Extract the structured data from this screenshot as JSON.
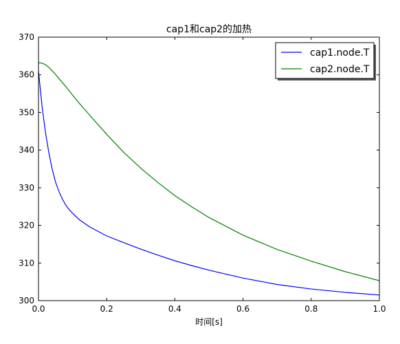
{
  "chart_data": {
    "type": "line",
    "title": "cap1和cap2的加热",
    "xlabel": "时间[s]",
    "ylabel": "",
    "xlim": [
      0.0,
      1.0
    ],
    "ylim": [
      300,
      370
    ],
    "xticks": [
      0.0,
      0.2,
      0.4,
      0.6,
      0.8,
      1.0
    ],
    "xtick_labels": [
      "0.0",
      "0.2",
      "0.4",
      "0.6",
      "0.8",
      "1.0"
    ],
    "yticks": [
      300,
      310,
      320,
      330,
      340,
      350,
      360,
      370
    ],
    "ytick_labels": [
      "300",
      "310",
      "320",
      "330",
      "340",
      "350",
      "360",
      "370"
    ],
    "grid": false,
    "legend_position": "top-right",
    "series": [
      {
        "name": "cap1.node.T",
        "color": "#0000ff",
        "x": [
          0.0,
          0.01,
          0.02,
          0.03,
          0.04,
          0.05,
          0.06,
          0.07,
          0.08,
          0.09,
          0.1,
          0.12,
          0.15,
          0.2,
          0.25,
          0.3,
          0.35,
          0.4,
          0.45,
          0.5,
          0.6,
          0.7,
          0.8,
          0.9,
          1.0
        ],
        "y": [
          361.0,
          352.0,
          345.0,
          339.5,
          335.0,
          331.5,
          329.0,
          327.0,
          325.4,
          324.2,
          323.2,
          321.5,
          319.6,
          317.2,
          315.4,
          313.7,
          312.1,
          310.6,
          309.3,
          308.1,
          306.0,
          304.3,
          303.1,
          302.2,
          301.5
        ]
      },
      {
        "name": "cap2.node.T",
        "color": "#008000",
        "x": [
          0.0,
          0.01,
          0.02,
          0.03,
          0.04,
          0.05,
          0.06,
          0.08,
          0.1,
          0.12,
          0.15,
          0.2,
          0.25,
          0.3,
          0.35,
          0.4,
          0.45,
          0.5,
          0.6,
          0.7,
          0.8,
          0.9,
          1.0
        ],
        "y": [
          363.2,
          363.1,
          362.7,
          362.0,
          361.1,
          360.1,
          359.0,
          356.9,
          354.6,
          352.4,
          349.3,
          344.2,
          339.4,
          335.2,
          331.4,
          327.9,
          324.9,
          322.1,
          317.4,
          313.6,
          310.5,
          307.7,
          305.3
        ]
      }
    ]
  }
}
